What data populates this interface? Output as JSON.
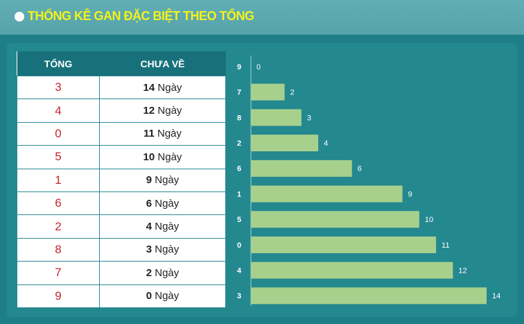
{
  "header": {
    "title": "THỐNG KÊ GAN ĐẶC BIỆT THEO TỔNG"
  },
  "table": {
    "columns": [
      "TỔNG",
      "CHƯA VỀ"
    ],
    "rows": [
      {
        "tong": "3",
        "days": 14,
        "unit": "Ngày"
      },
      {
        "tong": "4",
        "days": 12,
        "unit": "Ngày"
      },
      {
        "tong": "0",
        "days": 11,
        "unit": "Ngày"
      },
      {
        "tong": "5",
        "days": 10,
        "unit": "Ngày"
      },
      {
        "tong": "1",
        "days": 9,
        "unit": "Ngày"
      },
      {
        "tong": "6",
        "days": 6,
        "unit": "Ngày"
      },
      {
        "tong": "2",
        "days": 4,
        "unit": "Ngày"
      },
      {
        "tong": "8",
        "days": 3,
        "unit": "Ngày"
      },
      {
        "tong": "7",
        "days": 2,
        "unit": "Ngày"
      },
      {
        "tong": "9",
        "days": 0,
        "unit": "Ngày"
      }
    ]
  },
  "chart_data": {
    "type": "hbar",
    "categories": [
      "9",
      "7",
      "8",
      "2",
      "6",
      "1",
      "5",
      "0",
      "4",
      "3"
    ],
    "values": [
      0,
      2,
      3,
      4,
      6,
      9,
      10,
      11,
      12,
      14
    ],
    "color": "#a8d08d",
    "xlim": [
      0,
      14
    ]
  }
}
